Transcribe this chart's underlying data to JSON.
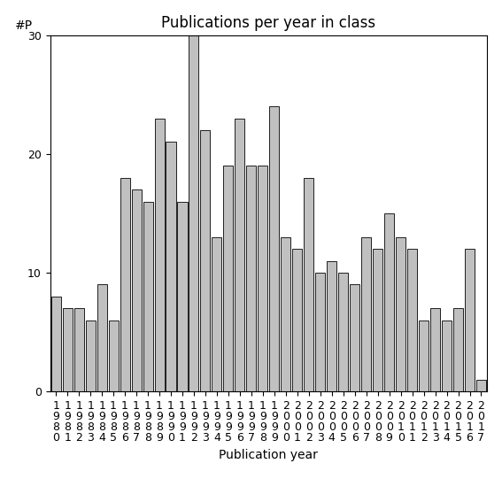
{
  "title": "Publications per year in class",
  "xlabel": "Publication year",
  "ylabel": "#P",
  "years": [
    1980,
    1981,
    1982,
    1983,
    1984,
    1985,
    1986,
    1987,
    1988,
    1989,
    1990,
    1991,
    1992,
    1993,
    1994,
    1995,
    1996,
    1997,
    1998,
    1999,
    2000,
    2001,
    2002,
    2003,
    2004,
    2005,
    2006,
    2007,
    2008,
    2009,
    2010,
    2011,
    2012,
    2013,
    2014,
    2015,
    2016,
    2017
  ],
  "values": [
    8,
    7,
    7,
    6,
    9,
    6,
    18,
    17,
    16,
    23,
    21,
    16,
    30,
    22,
    13,
    19,
    23,
    19,
    19,
    24,
    13,
    12,
    18,
    10,
    11,
    10,
    9,
    13,
    12,
    15,
    13,
    12,
    6,
    7,
    6,
    7,
    12,
    1
  ],
  "bar_color": "#c0c0c0",
  "bar_edge_color": "#000000",
  "ylim": [
    0,
    30
  ],
  "yticks": [
    0,
    10,
    20,
    30
  ],
  "background_color": "#ffffff",
  "title_fontsize": 12,
  "label_fontsize": 10,
  "tick_fontsize": 9
}
